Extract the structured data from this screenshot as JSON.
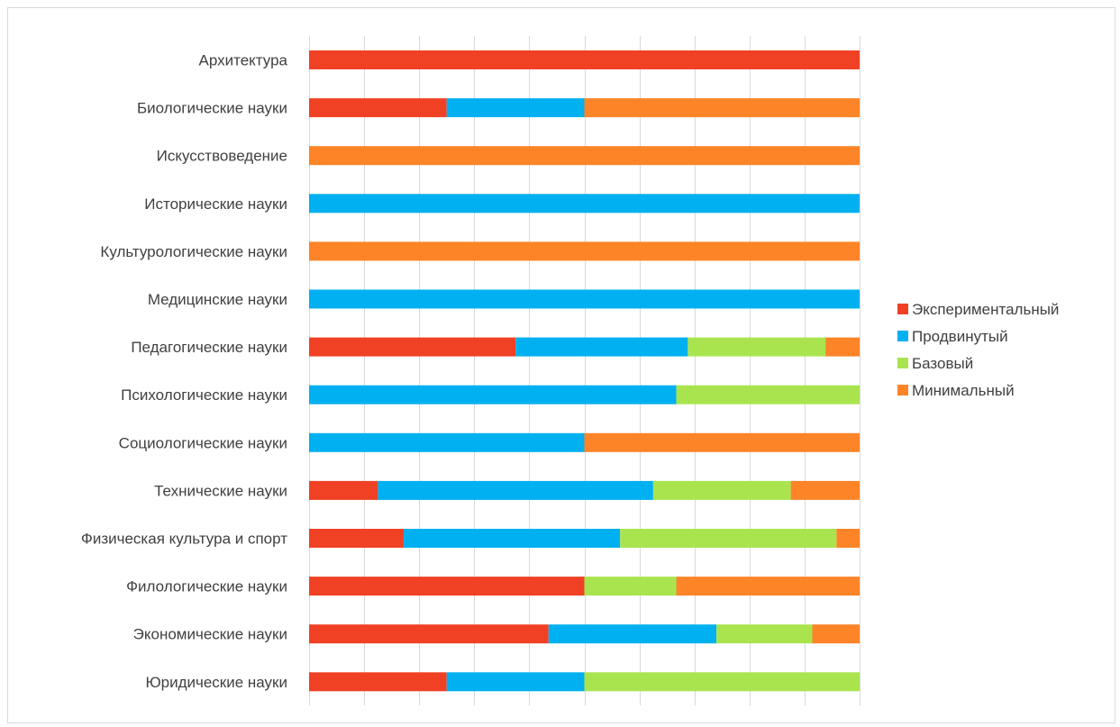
{
  "chart_data": {
    "type": "bar",
    "orientation": "horizontal",
    "stacked": "100%",
    "title": "",
    "xlabel": "",
    "ylabel": "",
    "xlim": [
      0,
      100
    ],
    "grid": true,
    "legend_placement": "right",
    "categories": [
      "Архитектура",
      "Биологические науки",
      "Искусствоведение",
      "Исторические науки",
      "Культурологические науки",
      "Медицинские науки",
      "Педагогические науки",
      "Психологические науки",
      "Социологические науки",
      "Технические науки",
      "Физическая культура и спорт",
      "Филологические науки",
      "Экономические науки",
      "Юридические науки"
    ],
    "series": [
      {
        "name": "Экспериментальный",
        "color": "#f04125",
        "values": [
          100,
          25,
          0,
          0,
          0,
          0,
          37.5,
          0,
          0,
          12.5,
          17.2,
          50,
          43.5,
          25
        ]
      },
      {
        "name": "Продвинутый",
        "color": "#00b0f0",
        "values": [
          0,
          25,
          0,
          100,
          0,
          100,
          31.3,
          66.7,
          50,
          50,
          39.3,
          0,
          30.5,
          25
        ]
      },
      {
        "name": "Базовый",
        "color": "#a9e44f",
        "values": [
          0,
          0,
          0,
          0,
          0,
          0,
          25,
          33.3,
          0,
          25,
          39.3,
          16.7,
          17.4,
          50
        ]
      },
      {
        "name": "Минимальный",
        "color": "#fd8427",
        "values": [
          0,
          50,
          100,
          0,
          100,
          0,
          6.2,
          0,
          50,
          12.5,
          4.2,
          33.3,
          8.6,
          0
        ]
      }
    ]
  }
}
